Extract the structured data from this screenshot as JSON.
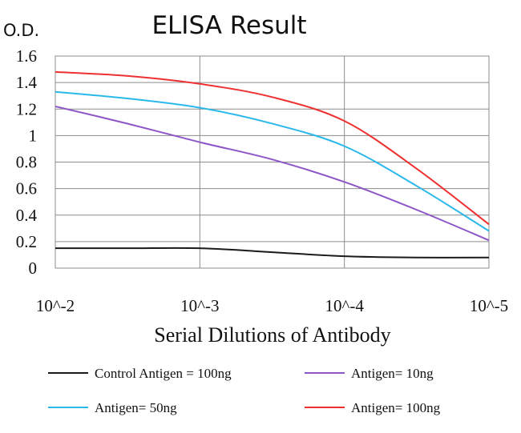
{
  "chart_data": {
    "type": "line",
    "title": "ELISA Result",
    "ylabel": "O.D.",
    "xlabel": "Serial Dilutions of Antibody",
    "categories": [
      "10^-2",
      "10^-3",
      "10^-4",
      "10^-5"
    ],
    "ylim": [
      0,
      1.6
    ],
    "yticks": [
      "0",
      "0.2",
      "0.4",
      "0.6",
      "0.8",
      "1",
      "1.2",
      "1.4",
      "1.6"
    ],
    "grid": true,
    "legend_position": "bottom",
    "series": [
      {
        "name": "Control Antigen = 100ng",
        "color": "#1a1a1a",
        "points": [
          [
            0,
            0.15
          ],
          [
            0.5,
            0.15
          ],
          [
            1,
            0.15
          ],
          [
            1.5,
            0.12
          ],
          [
            2,
            0.09
          ],
          [
            2.5,
            0.08
          ],
          [
            3,
            0.08
          ]
        ]
      },
      {
        "name": "Antigen= 10ng",
        "color": "#8e55c8",
        "points": [
          [
            0,
            1.22
          ],
          [
            0.5,
            1.09
          ],
          [
            1,
            0.95
          ],
          [
            1.5,
            0.82
          ],
          [
            2,
            0.65
          ],
          [
            2.5,
            0.44
          ],
          [
            3,
            0.21
          ]
        ]
      },
      {
        "name": "Antigen= 50ng",
        "color": "#2ab8ec",
        "points": [
          [
            0,
            1.33
          ],
          [
            0.5,
            1.28
          ],
          [
            1,
            1.21
          ],
          [
            1.5,
            1.09
          ],
          [
            2,
            0.92
          ],
          [
            2.5,
            0.62
          ],
          [
            3,
            0.28
          ]
        ]
      },
      {
        "name": "Antigen= 100ng",
        "color": "#ee3030",
        "points": [
          [
            0,
            1.48
          ],
          [
            0.5,
            1.45
          ],
          [
            1,
            1.39
          ],
          [
            1.5,
            1.29
          ],
          [
            2,
            1.11
          ],
          [
            2.5,
            0.75
          ],
          [
            3,
            0.33
          ]
        ]
      }
    ]
  }
}
